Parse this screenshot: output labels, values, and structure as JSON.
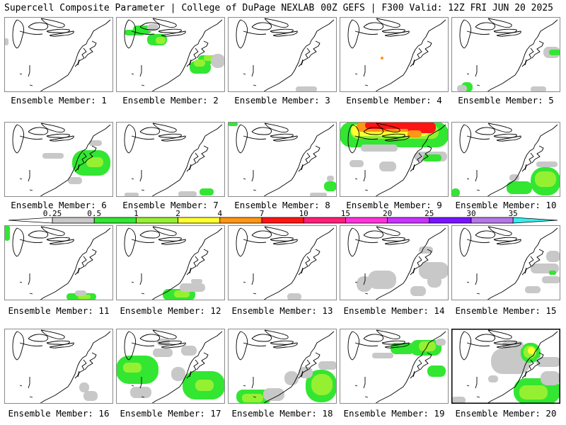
{
  "header": {
    "left": "Supercell Composite Parameter | College of DuPage NEXLAB",
    "right": "00Z GEFS | F300 Valid: 12Z FRI JUN 20 2025"
  },
  "colorbar": {
    "labels": [
      "0.25",
      "0.5",
      "1",
      "2",
      "4",
      "7",
      "10",
      "15",
      "20",
      "25",
      "30",
      "35"
    ],
    "colors": [
      "#c8c8c8",
      "#32e632",
      "#96f032",
      "#ffff32",
      "#ff9614",
      "#ff1414",
      "#ff1e78",
      "#ff32dc",
      "#c832ff",
      "#7814ff",
      "#b478e6",
      "#32f0f0"
    ]
  },
  "members": [
    {
      "label": "Ensemble Member: 1"
    },
    {
      "label": "Ensemble Member: 2"
    },
    {
      "label": "Ensemble Member: 3"
    },
    {
      "label": "Ensemble Member: 4"
    },
    {
      "label": "Ensemble Member: 5"
    },
    {
      "label": "Ensemble Member: 6"
    },
    {
      "label": "Ensemble Member: 7"
    },
    {
      "label": "Ensemble Member: 8"
    },
    {
      "label": "Ensemble Member: 9"
    },
    {
      "label": "Ensemble Member: 10"
    },
    {
      "label": "Ensemble Member: 11"
    },
    {
      "label": "Ensemble Member: 12"
    },
    {
      "label": "Ensemble Member: 13"
    },
    {
      "label": "Ensemble Member: 14"
    },
    {
      "label": "Ensemble Member: 15"
    },
    {
      "label": "Ensemble Member: 16"
    },
    {
      "label": "Ensemble Member: 17"
    },
    {
      "label": "Ensemble Member: 18"
    },
    {
      "label": "Ensemble Member: 19"
    },
    {
      "label": "Ensemble Member: 20",
      "highlighted": true
    }
  ]
}
